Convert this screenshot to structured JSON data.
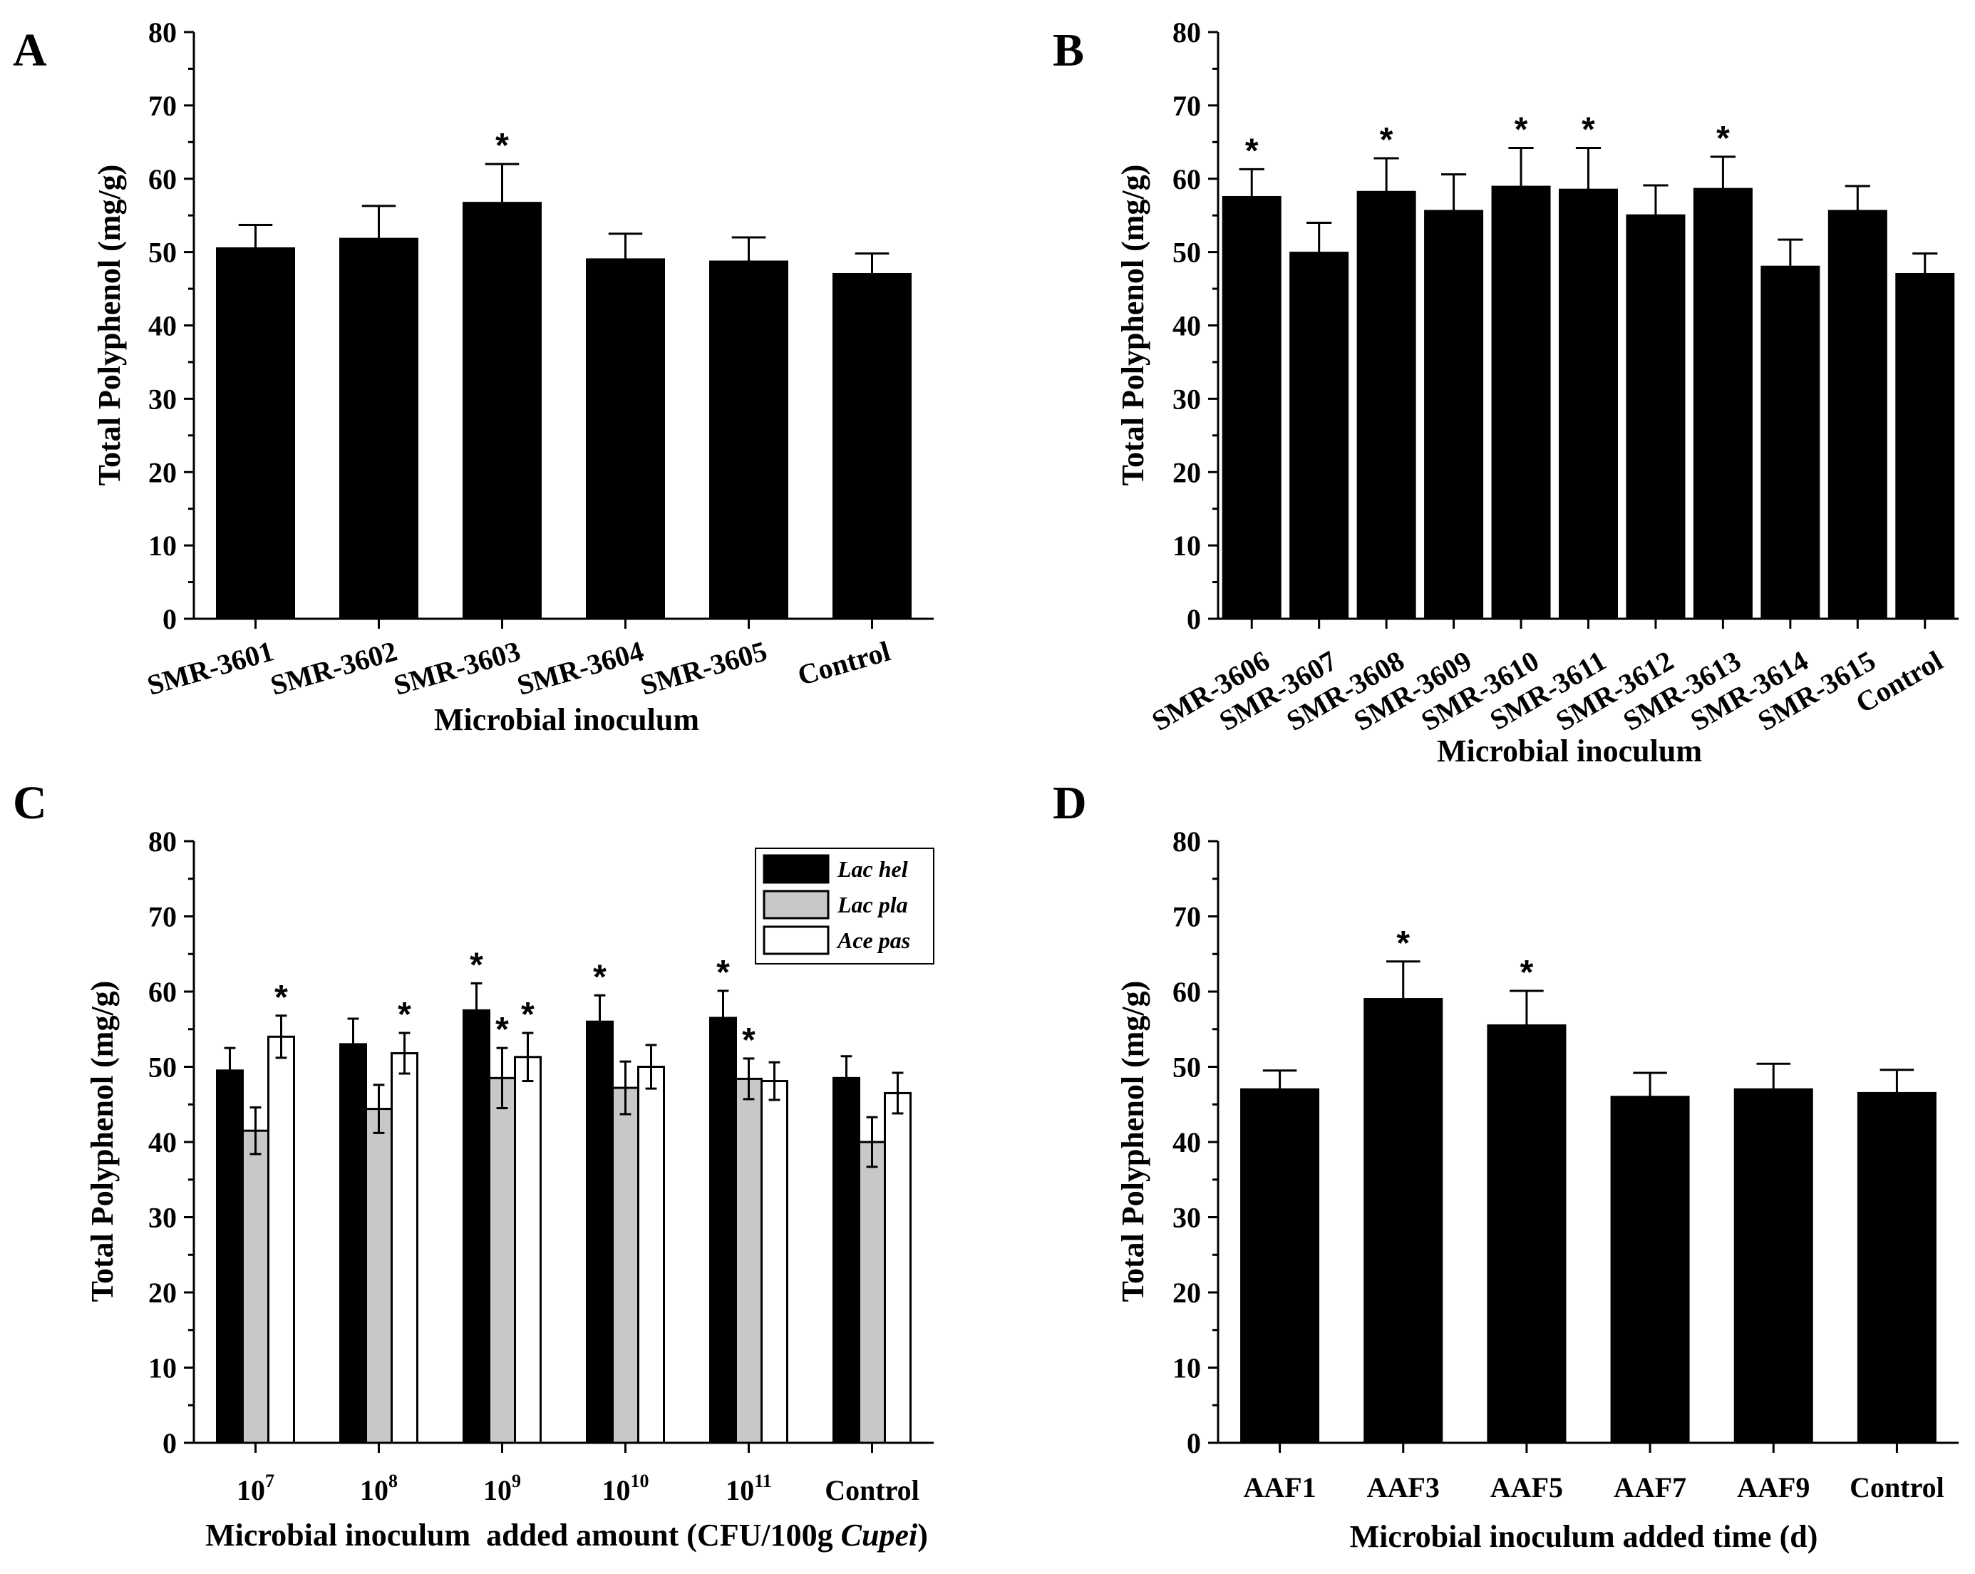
{
  "chart_data": [
    {
      "type": "bar",
      "panel_label": "A",
      "ylabel": "Total Polyphenol (mg/g)",
      "xlabel": "Microbial inoculum",
      "ylim": [
        0,
        80
      ],
      "yticks": [
        0,
        10,
        20,
        30,
        40,
        50,
        60,
        70,
        80
      ],
      "categories": [
        "SMR-3601",
        "SMR-3602",
        "SMR-3603",
        "SMR-3604",
        "SMR-3605",
        "Control"
      ],
      "series": [
        {
          "color": "#000000",
          "values": [
            50.5,
            51.8,
            56.7,
            49.0,
            48.7,
            47.0
          ],
          "errors": [
            3.2,
            4.5,
            5.3,
            3.5,
            3.3,
            2.8
          ],
          "significant": [
            false,
            false,
            true,
            false,
            false,
            false
          ]
        }
      ],
      "significance_mark": "*"
    },
    {
      "type": "bar",
      "panel_label": "B",
      "ylabel": "Total Polyphenol (mg/g)",
      "xlabel": "Microbial inoculum",
      "ylim": [
        0,
        80
      ],
      "yticks": [
        0,
        10,
        20,
        30,
        40,
        50,
        60,
        70,
        80
      ],
      "categories": [
        "SMR-3606",
        "SMR-3607",
        "SMR-3608",
        "SMR-3609",
        "SMR-3610",
        "SMR-3611",
        "SMR-3612",
        "SMR-3613",
        "SMR-3614",
        "SMR-3615",
        "Control"
      ],
      "series": [
        {
          "color": "#000000",
          "values": [
            57.5,
            49.9,
            58.2,
            55.6,
            58.9,
            58.5,
            55.0,
            58.6,
            48.0,
            55.6,
            47.0
          ],
          "errors": [
            3.8,
            4.1,
            4.6,
            5.0,
            5.3,
            5.7,
            4.1,
            4.4,
            3.7,
            3.4,
            2.8
          ],
          "significant": [
            true,
            false,
            true,
            false,
            true,
            true,
            false,
            true,
            false,
            false,
            false
          ]
        }
      ],
      "significance_mark": "*"
    },
    {
      "type": "bar",
      "panel_label": "C",
      "ylabel": "Total Polyphenol (mg/g)",
      "xlabel": "Microbial inoculum  added amount (CFU/100g Cupei)",
      "xlabel_plain": "Microbial inoculum  added amount (CFU/100g ",
      "xlabel_italic": "Cupei",
      "xlabel_close": ")",
      "ylim": [
        0,
        80
      ],
      "yticks": [
        0,
        10,
        20,
        30,
        40,
        50,
        60,
        70,
        80
      ],
      "categories": [
        {
          "base": "10",
          "exp": "7"
        },
        {
          "base": "10",
          "exp": "8"
        },
        {
          "base": "10",
          "exp": "9"
        },
        {
          "base": "10",
          "exp": "10"
        },
        {
          "base": "10",
          "exp": "11"
        },
        {
          "base": "Control",
          "exp": ""
        }
      ],
      "series": [
        {
          "name": "Lac hel",
          "color": "#000000",
          "values": [
            49.5,
            53.0,
            57.5,
            56.0,
            56.5,
            48.5
          ],
          "errors": [
            3.0,
            3.4,
            3.6,
            3.5,
            3.6,
            2.9
          ],
          "significant": [
            false,
            false,
            true,
            true,
            true,
            false
          ]
        },
        {
          "name": "Lac pla",
          "color": "#c8c8c8",
          "values": [
            41.5,
            44.4,
            48.5,
            47.2,
            48.4,
            40.0
          ],
          "errors": [
            3.1,
            3.2,
            4.0,
            3.5,
            2.7,
            3.3
          ],
          "significant": [
            false,
            false,
            true,
            false,
            true,
            false
          ]
        },
        {
          "name": "Ace pas",
          "color": "#ffffff",
          "values": [
            54.0,
            51.8,
            51.3,
            50.0,
            48.1,
            46.5
          ],
          "errors": [
            2.8,
            2.7,
            3.2,
            2.9,
            2.5,
            2.7
          ],
          "significant": [
            true,
            true,
            true,
            false,
            false,
            false
          ]
        }
      ],
      "legend_position": "top-right",
      "significance_mark": "*"
    },
    {
      "type": "bar",
      "panel_label": "D",
      "ylabel": "Total Polyphenol (mg/g)",
      "xlabel": "Microbial inoculum added time (d)",
      "ylim": [
        0,
        80
      ],
      "yticks": [
        0,
        10,
        20,
        30,
        40,
        50,
        60,
        70,
        80
      ],
      "categories": [
        "AAF1",
        "AAF3",
        "AAF5",
        "AAF7",
        "AAF9",
        "Control"
      ],
      "series": [
        {
          "color": "#000000",
          "values": [
            47.0,
            59.0,
            55.5,
            46.0,
            47.0,
            46.5
          ],
          "errors": [
            2.5,
            5.0,
            4.6,
            3.2,
            3.4,
            3.1
          ],
          "significant": [
            false,
            true,
            true,
            false,
            false,
            false
          ]
        }
      ],
      "significance_mark": "*"
    }
  ]
}
